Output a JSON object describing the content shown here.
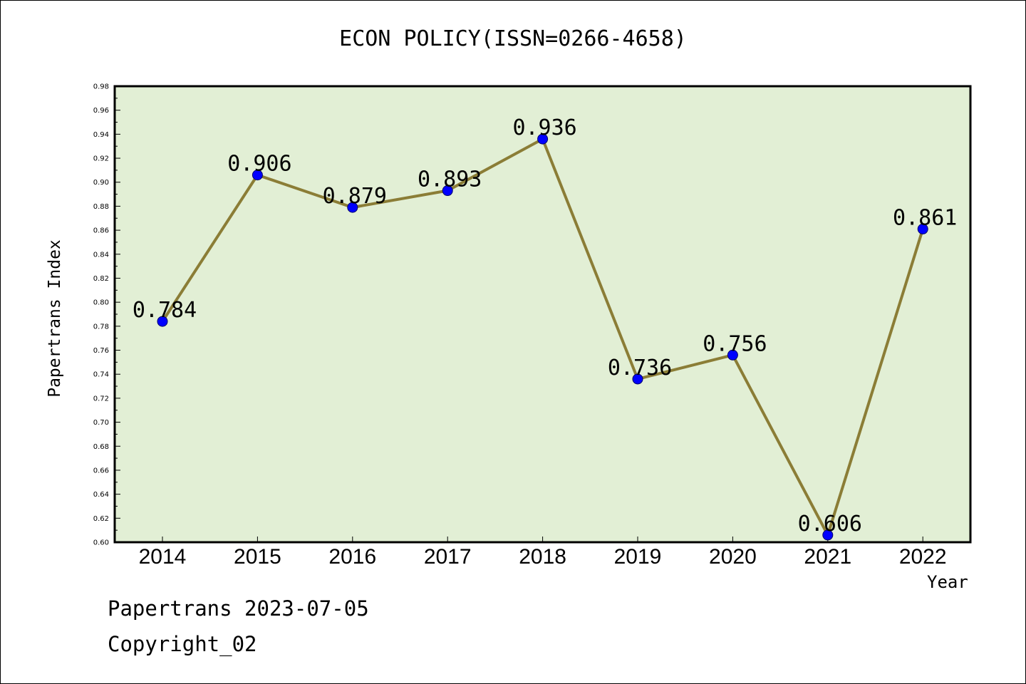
{
  "chart_data": {
    "type": "line",
    "title": "ECON POLICY(ISSN=0266-4658)",
    "xlabel": "Year",
    "ylabel": "Papertrans Index",
    "categories": [
      "2014",
      "2015",
      "2016",
      "2017",
      "2018",
      "2019",
      "2020",
      "2021",
      "2022"
    ],
    "values": [
      0.784,
      0.906,
      0.879,
      0.893,
      0.936,
      0.736,
      0.756,
      0.606,
      0.861
    ],
    "data_labels": [
      "0.784",
      "0.906",
      "0.879",
      "0.893",
      "0.936",
      "0.736",
      "0.756",
      "0.606",
      "0.861"
    ],
    "ylim": [
      0.6,
      0.98
    ],
    "yticks": [
      "0.60",
      "0.62",
      "0.64",
      "0.66",
      "0.68",
      "0.70",
      "0.72",
      "0.74",
      "0.76",
      "0.78",
      "0.80",
      "0.82",
      "0.84",
      "0.86",
      "0.88",
      "0.90",
      "0.92",
      "0.94",
      "0.96",
      "0.98"
    ],
    "grid": false,
    "colors": {
      "plot_background": "#e2efd5",
      "line": "#8b7d36",
      "marker": "#0000ff"
    }
  },
  "footer": {
    "line1": "Papertrans 2023-07-05",
    "line2": "Copyright_02"
  }
}
